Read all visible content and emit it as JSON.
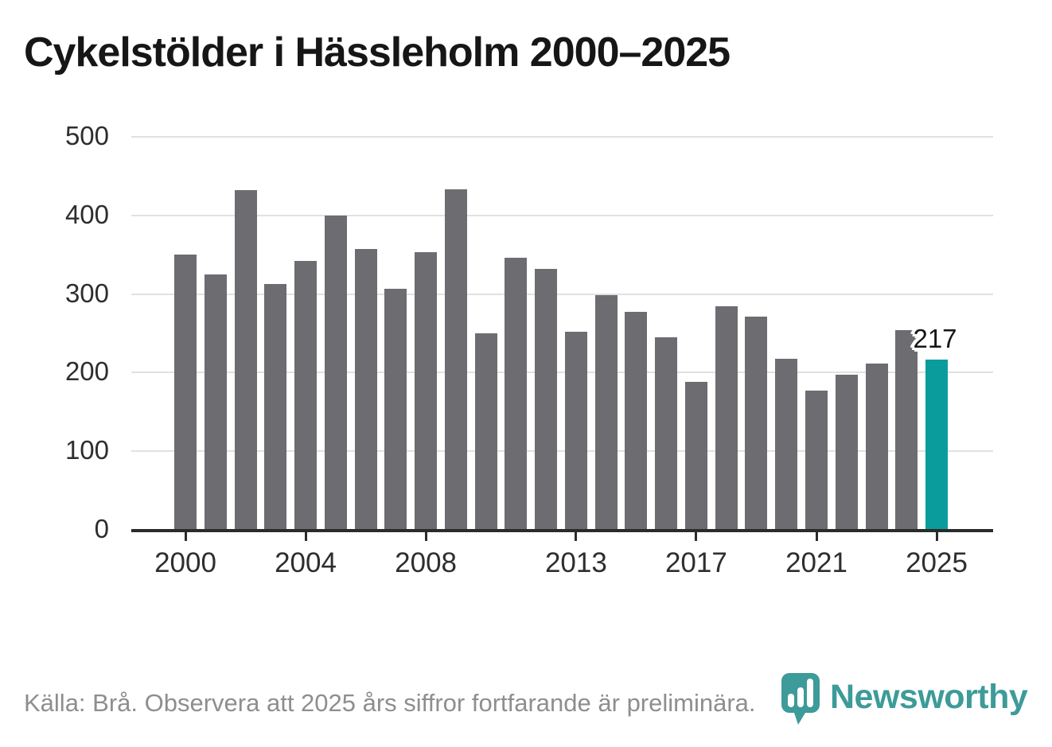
{
  "chart_data": {
    "type": "bar",
    "title": "Cykelstölder i Hässleholm 2000–2025",
    "categories": [
      2000,
      2001,
      2002,
      2003,
      2004,
      2005,
      2006,
      2007,
      2008,
      2009,
      2010,
      2011,
      2012,
      2013,
      2014,
      2015,
      2016,
      2017,
      2018,
      2019,
      2020,
      2021,
      2022,
      2023,
      2024,
      2025
    ],
    "values": [
      350,
      325,
      432,
      313,
      342,
      400,
      357,
      307,
      353,
      433,
      250,
      346,
      332,
      252,
      299,
      277,
      245,
      188,
      284,
      271,
      218,
      177,
      197,
      212,
      254,
      217
    ],
    "xlabel": "",
    "ylabel": "",
    "ylim": [
      0,
      500
    ],
    "y_ticks": [
      0,
      100,
      200,
      300,
      400,
      500
    ],
    "x_tick_labels": [
      "2000",
      "2004",
      "2008",
      "2013",
      "2017",
      "2021",
      "2025"
    ],
    "grid": true,
    "legend": "none",
    "bar_color": "#6c6c71",
    "highlight_color": "#0a9c9c",
    "highlight_year": 2025,
    "annotation": {
      "text": "217",
      "year": 2025
    }
  },
  "footer": {
    "source_text": "Källa: Brå. Observera att 2025 års siffror fortfarande är preliminära."
  },
  "logo": {
    "text": "Newsworthy",
    "color": "#3d9b99",
    "icon": "newsworthy-pin-barchart-icon"
  }
}
